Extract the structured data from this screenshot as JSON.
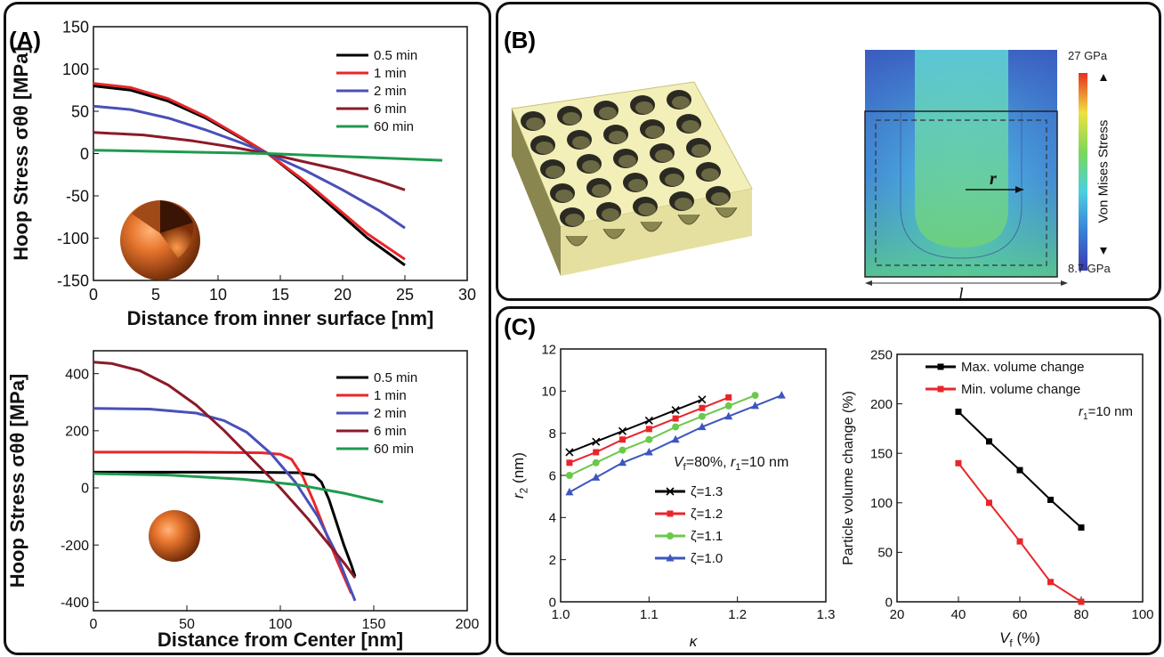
{
  "panels": {
    "a": {
      "label": "(A)"
    },
    "b": {
      "label": "(B)"
    },
    "c": {
      "label": "(C)"
    }
  },
  "chart_data": [
    {
      "id": "a_top",
      "type": "line",
      "xlabel": "Distance from inner surface [nm]",
      "ylabel": "Hoop Stress σθθ [MPa]",
      "xlim": [
        0,
        30
      ],
      "ylim": [
        -150,
        150
      ],
      "xticks": [
        0,
        5,
        10,
        15,
        20,
        25,
        30
      ],
      "yticks": [
        -150,
        -100,
        -50,
        0,
        50,
        100,
        150
      ],
      "legend_position": "top-right",
      "series": [
        {
          "name": "0.5 min",
          "color": "#000000",
          "x": [
            0,
            3,
            6,
            9,
            12,
            14,
            17,
            20,
            22,
            25
          ],
          "y": [
            80,
            75,
            62,
            42,
            17,
            0,
            -35,
            -74,
            -100,
            -132
          ]
        },
        {
          "name": "1 min",
          "color": "#e8262a",
          "x": [
            0,
            3,
            6,
            9,
            12,
            14,
            17,
            20,
            22,
            25
          ],
          "y": [
            83,
            78,
            65,
            44,
            18,
            0,
            -33,
            -70,
            -95,
            -125
          ]
        },
        {
          "name": "2 min",
          "color": "#4a4fb8",
          "x": [
            0,
            3,
            6,
            9,
            12,
            14,
            17,
            20,
            23,
            25
          ],
          "y": [
            56,
            52,
            42,
            28,
            12,
            0,
            -20,
            -43,
            -68,
            -88
          ]
        },
        {
          "name": "6 min",
          "color": "#8b1a28",
          "x": [
            0,
            4,
            8,
            11,
            14,
            17,
            20,
            23,
            25
          ],
          "y": [
            25,
            22,
            15,
            8,
            0,
            -10,
            -20,
            -33,
            -43
          ]
        },
        {
          "name": "60 min",
          "color": "#1f9a4e",
          "x": [
            0,
            7,
            14,
            21,
            28
          ],
          "y": [
            4,
            2,
            0,
            -4,
            -8
          ]
        }
      ]
    },
    {
      "id": "a_bottom",
      "type": "line",
      "xlabel": "Distance from Center [nm]",
      "ylabel": "Hoop Stress σθθ [MPa]",
      "xlim": [
        0,
        200
      ],
      "ylim": [
        -430,
        480
      ],
      "xticks": [
        0,
        50,
        100,
        150,
        200
      ],
      "yticks": [
        -400,
        -200,
        0,
        200,
        400
      ],
      "legend_position": "top-right",
      "series": [
        {
          "name": "0.5 min",
          "color": "#000000",
          "x": [
            0,
            40,
            80,
            110,
            118,
            122,
            126,
            130,
            134,
            138,
            140
          ],
          "y": [
            55,
            55,
            55,
            53,
            45,
            20,
            -40,
            -120,
            -200,
            -270,
            -310
          ]
        },
        {
          "name": "1 min",
          "color": "#e8262a",
          "x": [
            0,
            50,
            90,
            100,
            106,
            112,
            118,
            124,
            130,
            136,
            138
          ],
          "y": [
            125,
            125,
            123,
            118,
            100,
            40,
            -50,
            -150,
            -250,
            -340,
            -370
          ]
        },
        {
          "name": "2 min",
          "color": "#4a4fb8",
          "x": [
            0,
            30,
            55,
            70,
            82,
            95,
            108,
            120,
            130,
            136,
            140
          ],
          "y": [
            278,
            276,
            262,
            235,
            195,
            120,
            20,
            -100,
            -230,
            -330,
            -395
          ]
        },
        {
          "name": "6 min",
          "color": "#8b1a28",
          "x": [
            0,
            10,
            25,
            40,
            55,
            70,
            85,
            100,
            115,
            125,
            135,
            140
          ],
          "y": [
            440,
            435,
            410,
            360,
            290,
            200,
            100,
            0,
            -110,
            -190,
            -270,
            -315
          ]
        },
        {
          "name": "60 min",
          "color": "#1f9a4e",
          "x": [
            0,
            40,
            80,
            110,
            135,
            155
          ],
          "y": [
            50,
            45,
            30,
            10,
            -20,
            -50
          ]
        }
      ]
    },
    {
      "id": "c_left",
      "type": "line",
      "xlabel": "κ",
      "ylabel": "r2 (nm)",
      "xlim": [
        1.0,
        1.3
      ],
      "ylim": [
        0,
        12
      ],
      "xticks": [
        "1.0",
        "1.1",
        "1.2",
        "1.3"
      ],
      "yticks": [
        0,
        2,
        4,
        6,
        8,
        10,
        12
      ],
      "annotation": "Vf=80%, r1=10 nm",
      "legend_position": "center-right",
      "series": [
        {
          "name": "ζ=1.3",
          "color": "#000000",
          "marker": "x",
          "x": [
            1.01,
            1.04,
            1.07,
            1.1,
            1.13,
            1.16
          ],
          "y": [
            7.1,
            7.6,
            8.1,
            8.6,
            9.1,
            9.6
          ]
        },
        {
          "name": "ζ=1.2",
          "color": "#e8262a",
          "marker": "square",
          "x": [
            1.01,
            1.04,
            1.07,
            1.1,
            1.13,
            1.16,
            1.19
          ],
          "y": [
            6.6,
            7.1,
            7.7,
            8.2,
            8.7,
            9.2,
            9.7
          ]
        },
        {
          "name": "ζ=1.1",
          "color": "#6cc84a",
          "marker": "circle",
          "x": [
            1.01,
            1.04,
            1.07,
            1.1,
            1.13,
            1.16,
            1.19,
            1.22
          ],
          "y": [
            6.0,
            6.6,
            7.2,
            7.7,
            8.3,
            8.8,
            9.3,
            9.8
          ]
        },
        {
          "name": "ζ=1.0",
          "color": "#3d55c0",
          "marker": "triangle",
          "x": [
            1.01,
            1.04,
            1.07,
            1.1,
            1.13,
            1.16,
            1.19,
            1.22,
            1.25
          ],
          "y": [
            5.2,
            5.9,
            6.6,
            7.1,
            7.7,
            8.3,
            8.8,
            9.3,
            9.8
          ]
        }
      ]
    },
    {
      "id": "c_right",
      "type": "line",
      "xlabel": "Vf (%)",
      "ylabel": "Particle volume change (%)",
      "xlim": [
        20,
        100
      ],
      "ylim": [
        0,
        250
      ],
      "xticks": [
        20,
        40,
        60,
        80,
        100
      ],
      "yticks": [
        0,
        50,
        100,
        150,
        200,
        250
      ],
      "annotation": "r1=10 nm",
      "legend_position": "top-right",
      "series": [
        {
          "name": "Max. volume change",
          "color": "#000000",
          "marker": "square",
          "x": [
            40,
            50,
            60,
            70,
            80
          ],
          "y": [
            192,
            162,
            133,
            103,
            75
          ]
        },
        {
          "name": "Min. volume change",
          "color": "#e8262a",
          "marker": "square",
          "x": [
            40,
            50,
            60,
            70,
            80
          ],
          "y": [
            140,
            100,
            61,
            20,
            0
          ]
        }
      ]
    }
  ],
  "colorbar": {
    "title": "Von Mises Stress",
    "max_label": "27 GPa",
    "min_label": "8.7 GPa",
    "radius_label": "r",
    "length_label": "l"
  }
}
